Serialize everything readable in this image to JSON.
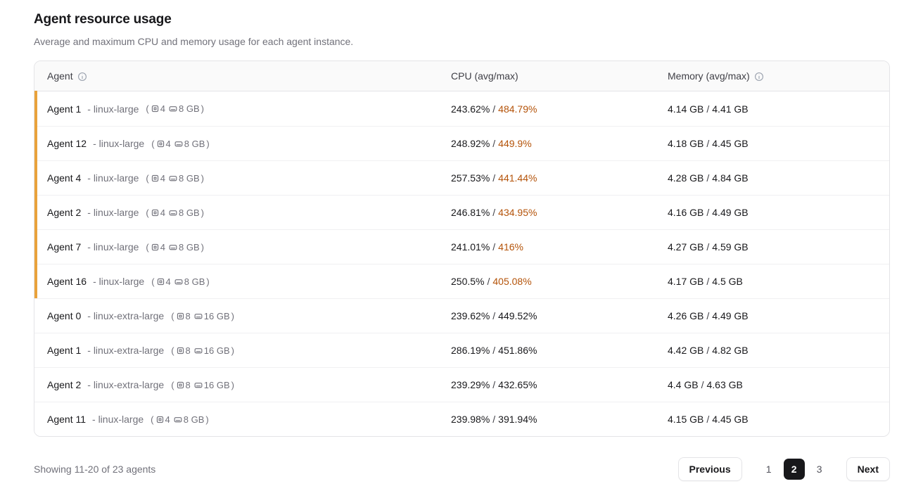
{
  "page": {
    "title": "Agent resource usage",
    "subtitle": "Average and maximum CPU and memory usage for each agent instance."
  },
  "table": {
    "headers": {
      "agent": "Agent",
      "cpu": "CPU (avg/max)",
      "memory": "Memory (avg/max)"
    },
    "separator": "/",
    "spec_paren_open": "(",
    "spec_paren_close": ")",
    "rows": [
      {
        "name": "Agent 1",
        "instance": "- linux-large",
        "cpu_count": "4",
        "mem_size": "8 GB",
        "cpu_avg": "243.62%",
        "cpu_max": "484.79%",
        "mem_avg": "4.14 GB",
        "mem_max": "4.41 GB",
        "flagged": true
      },
      {
        "name": "Agent 12",
        "instance": "- linux-large",
        "cpu_count": "4",
        "mem_size": "8 GB",
        "cpu_avg": "248.92%",
        "cpu_max": "449.9%",
        "mem_avg": "4.18 GB",
        "mem_max": "4.45 GB",
        "flagged": true
      },
      {
        "name": "Agent 4",
        "instance": "- linux-large",
        "cpu_count": "4",
        "mem_size": "8 GB",
        "cpu_avg": "257.53%",
        "cpu_max": "441.44%",
        "mem_avg": "4.28 GB",
        "mem_max": "4.84 GB",
        "flagged": true
      },
      {
        "name": "Agent 2",
        "instance": "- linux-large",
        "cpu_count": "4",
        "mem_size": "8 GB",
        "cpu_avg": "246.81%",
        "cpu_max": "434.95%",
        "mem_avg": "4.16 GB",
        "mem_max": "4.49 GB",
        "flagged": true
      },
      {
        "name": "Agent 7",
        "instance": "- linux-large",
        "cpu_count": "4",
        "mem_size": "8 GB",
        "cpu_avg": "241.01%",
        "cpu_max": "416%",
        "mem_avg": "4.27 GB",
        "mem_max": "4.59 GB",
        "flagged": true
      },
      {
        "name": "Agent 16",
        "instance": "- linux-large",
        "cpu_count": "4",
        "mem_size": "8 GB",
        "cpu_avg": "250.5%",
        "cpu_max": "405.08%",
        "mem_avg": "4.17 GB",
        "mem_max": "4.5 GB",
        "flagged": true
      },
      {
        "name": "Agent 0",
        "instance": "- linux-extra-large",
        "cpu_count": "8",
        "mem_size": "16 GB",
        "cpu_avg": "239.62%",
        "cpu_max": "449.52%",
        "mem_avg": "4.26 GB",
        "mem_max": "4.49 GB",
        "flagged": false
      },
      {
        "name": "Agent 1",
        "instance": "- linux-extra-large",
        "cpu_count": "8",
        "mem_size": "16 GB",
        "cpu_avg": "286.19%",
        "cpu_max": "451.86%",
        "mem_avg": "4.42 GB",
        "mem_max": "4.82 GB",
        "flagged": false
      },
      {
        "name": "Agent 2",
        "instance": "- linux-extra-large",
        "cpu_count": "8",
        "mem_size": "16 GB",
        "cpu_avg": "239.29%",
        "cpu_max": "432.65%",
        "mem_avg": "4.4 GB",
        "mem_max": "4.63 GB",
        "flagged": false
      },
      {
        "name": "Agent 11",
        "instance": "- linux-large",
        "cpu_count": "4",
        "mem_size": "8 GB",
        "cpu_avg": "239.98%",
        "cpu_max": "391.94%",
        "mem_avg": "4.15 GB",
        "mem_max": "4.45 GB",
        "flagged": false
      }
    ]
  },
  "footer": {
    "showing": "Showing 11-20 of 23 agents",
    "pagination": {
      "previous_label": "Previous",
      "next_label": "Next",
      "pages": [
        "1",
        "2",
        "3"
      ],
      "active": "2"
    }
  },
  "colors": {
    "warn_text": "#b45309",
    "warn_strip": "#e9a23b",
    "active_page_bg": "#18181b",
    "border": "#e4e4e7",
    "header_bg": "#fafafa",
    "muted_text": "#71717a"
  }
}
